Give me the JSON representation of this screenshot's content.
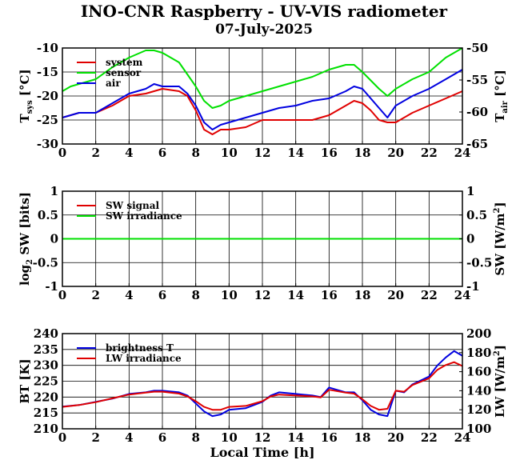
{
  "header": {
    "title": "INO-CNR Raspberry - UV-VIS radiometer",
    "date": "07-July-2025"
  },
  "colors": {
    "red": "#e00000",
    "green": "#00e000",
    "blue": "#0000e0",
    "axis": "#000000"
  },
  "chart_data": [
    {
      "type": "line",
      "title": "",
      "xlabel": "",
      "ylabel": "T_sys [°C]",
      "y2label": "T_air [°C]",
      "xlim": [
        0,
        24
      ],
      "ylim": [
        -30,
        -10
      ],
      "y2lim": [
        -65,
        -50
      ],
      "xticks": [
        0,
        2,
        4,
        6,
        8,
        10,
        12,
        14,
        16,
        18,
        20,
        22,
        24
      ],
      "yticks": [
        -30,
        -25,
        -20,
        -15,
        -10
      ],
      "y2ticks": [
        -65,
        -60,
        -55,
        -50
      ],
      "grid": true,
      "legend": "top-left",
      "series": [
        {
          "name": "system",
          "color": "#e00000",
          "axis": "left",
          "x": [
            0,
            1,
            2,
            3,
            4,
            5,
            6,
            7,
            7.5,
            8,
            8.5,
            9,
            9.5,
            10,
            11,
            12,
            13,
            14,
            15,
            16,
            17,
            17.5,
            18,
            18.5,
            19,
            19.5,
            20,
            21,
            22,
            23,
            24
          ],
          "y": [
            -24.5,
            -23.5,
            -23.5,
            -22,
            -20,
            -19.5,
            -18.5,
            -19,
            -20,
            -23,
            -27,
            -28,
            -27,
            -27,
            -26.5,
            -25,
            -25,
            -25,
            -25,
            -24,
            -22,
            -21,
            -21.5,
            -23,
            -25,
            -25.5,
            -25.5,
            -23.5,
            -22,
            -20.5,
            -19
          ]
        },
        {
          "name": "sensor",
          "color": "#00e000",
          "axis": "left",
          "x": [
            0,
            0.5,
            1,
            2,
            3,
            4,
            5,
            5.5,
            6,
            7,
            8,
            8.5,
            9,
            9.5,
            10,
            11,
            12,
            13,
            14,
            15,
            16,
            17,
            17.5,
            18,
            19,
            19.5,
            20,
            21,
            22,
            23,
            24
          ],
          "y": [
            -19,
            -18,
            -17.5,
            -16.5,
            -14,
            -12,
            -10.5,
            -10.5,
            -11,
            -13,
            -18,
            -21,
            -22.5,
            -22,
            -21,
            -20,
            -19,
            -18,
            -17,
            -16,
            -14.5,
            -13.5,
            -13.5,
            -15,
            -18.5,
            -20,
            -18.5,
            -16.5,
            -15,
            -12,
            -10
          ]
        },
        {
          "name": "air",
          "color": "#0000e0",
          "axis": "left",
          "x": [
            0,
            1,
            2,
            3,
            4,
            5,
            5.5,
            6,
            7,
            7.5,
            8,
            8.5,
            9,
            9.5,
            10,
            11,
            12,
            13,
            14,
            15,
            16,
            17,
            17.5,
            18,
            19,
            19.5,
            20,
            21,
            22,
            23,
            24
          ],
          "y": [
            -24.5,
            -23.5,
            -23.5,
            -21.5,
            -19.5,
            -18.5,
            -17.5,
            -18,
            -18,
            -19.5,
            -22,
            -25.5,
            -27,
            -26,
            -25.5,
            -24.5,
            -23.5,
            -22.5,
            -22,
            -21,
            -20.5,
            -19,
            -18,
            -18.5,
            -22.5,
            -24.5,
            -22,
            -20,
            -18.5,
            -16.5,
            -14.5
          ]
        }
      ]
    },
    {
      "type": "line",
      "title": "",
      "xlabel": "",
      "ylabel": "log2 SW [bits]",
      "y2label": "SW [W/m2]",
      "xlim": [
        0,
        24
      ],
      "ylim": [
        -1,
        1
      ],
      "y2lim": [
        -1,
        1
      ],
      "xticks": [
        0,
        2,
        4,
        6,
        8,
        10,
        12,
        14,
        16,
        18,
        20,
        22,
        24
      ],
      "yticks": [
        -1,
        -0.5,
        0,
        0.5,
        1
      ],
      "y2ticks": [
        -1,
        -0.5,
        0,
        0.5,
        1
      ],
      "grid": true,
      "legend": "top-left",
      "series": [
        {
          "name": "SW signal",
          "color": "#e00000",
          "axis": "left",
          "x": [
            0,
            24
          ],
          "y": [
            0,
            0
          ]
        },
        {
          "name": "SW irradiance",
          "color": "#00e000",
          "axis": "right",
          "x": [
            0,
            24
          ],
          "y": [
            0,
            0
          ]
        }
      ]
    },
    {
      "type": "line",
      "title": "",
      "xlabel": "Local Time [h]",
      "ylabel": "BT [K]",
      "y2label": "LW [W/m2]",
      "xlim": [
        0,
        24
      ],
      "ylim": [
        210,
        240
      ],
      "y2lim": [
        100,
        200
      ],
      "xticks": [
        0,
        2,
        4,
        6,
        8,
        10,
        12,
        14,
        16,
        18,
        20,
        22,
        24
      ],
      "yticks": [
        210,
        215,
        220,
        225,
        230,
        235,
        240
      ],
      "y2ticks": [
        100,
        120,
        140,
        160,
        180,
        200
      ],
      "grid": true,
      "legend": "top-left",
      "series": [
        {
          "name": "brightness T",
          "color": "#0000e0",
          "axis": "left",
          "x": [
            0,
            1,
            2,
            3,
            4,
            5,
            5.5,
            6,
            7,
            7.5,
            8,
            8.5,
            9,
            9.5,
            10,
            11,
            12,
            12.5,
            13,
            14,
            15,
            15.5,
            16,
            17,
            17.5,
            18,
            18.5,
            19,
            19.5,
            20,
            20.5,
            21,
            22,
            22.5,
            23,
            23.5,
            24
          ],
          "y": [
            217,
            217.5,
            218.5,
            219.5,
            221,
            221.5,
            222,
            222,
            221.5,
            220.5,
            218,
            215.5,
            214,
            214.5,
            216,
            216.5,
            218.5,
            220.5,
            221.5,
            221,
            220.5,
            220,
            223,
            221.5,
            221.5,
            219,
            216,
            214.5,
            214,
            222,
            221.5,
            224,
            226.5,
            230,
            232.5,
            234.5,
            233
          ]
        },
        {
          "name": "LW irradiance",
          "color": "#e00000",
          "axis": "right",
          "x": [
            0,
            1,
            2,
            3,
            4,
            5,
            5.5,
            6,
            7,
            7.5,
            8,
            8.5,
            9,
            9.5,
            10,
            11,
            12,
            12.5,
            13,
            14,
            15,
            15.5,
            16,
            17,
            17.5,
            18,
            18.5,
            19,
            19.5,
            20,
            20.5,
            21,
            22,
            22.5,
            23,
            23.5,
            24
          ],
          "y": [
            123,
            125,
            128,
            132,
            136,
            138,
            139,
            139,
            137,
            134,
            129,
            123,
            120,
            120,
            123,
            124,
            129,
            134,
            136,
            135,
            134,
            133,
            141,
            138,
            137,
            131,
            124,
            120,
            121,
            140,
            139,
            146,
            153,
            162,
            167,
            170,
            166
          ]
        }
      ]
    }
  ]
}
